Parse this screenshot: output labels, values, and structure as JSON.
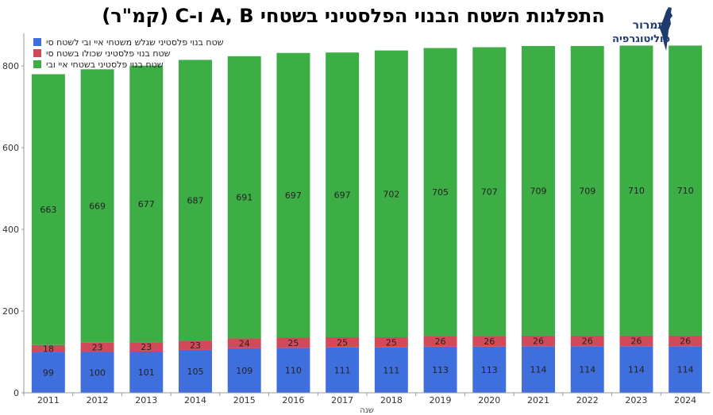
{
  "title": "התפלגות השטח הבנוי הפלסטיני בשטחי A, B ו-C (קמ\"ר)",
  "logo": {
    "line1": "תמרור",
    "line2": "פוליטוגרפיה"
  },
  "colors": {
    "blue": "#3f6fdc",
    "red": "#d14a5a",
    "green": "#3cae45"
  },
  "chart_data": {
    "type": "bar",
    "stacked": true,
    "categories": [
      "2011",
      "2012",
      "2013",
      "2014",
      "2015",
      "2016",
      "2017",
      "2018",
      "2019",
      "2020",
      "2021",
      "2022",
      "2023",
      "2024"
    ],
    "series": [
      {
        "name": "שטח בנוי פלסטיני שגלש משטחי איי ובי לשטח סי",
        "color": "#3f6fdc",
        "values": [
          99,
          100,
          101,
          105,
          109,
          110,
          111,
          111,
          113,
          113,
          114,
          114,
          114,
          114
        ]
      },
      {
        "name": "שטח בנוי פלסטיני שכולו בשטח סי",
        "color": "#d14a5a",
        "values": [
          18,
          23,
          23,
          23,
          24,
          25,
          25,
          25,
          26,
          26,
          26,
          26,
          26,
          26
        ]
      },
      {
        "name": "שטח בנוי פלסטיני בשטחי איי ובי",
        "color": "#3cae45",
        "values": [
          663,
          669,
          677,
          687,
          691,
          697,
          697,
          702,
          705,
          707,
          709,
          709,
          710,
          710
        ]
      }
    ],
    "xlabel": "שנה",
    "ylabel": "",
    "ylim": [
      0,
      880
    ],
    "yticks": [
      0,
      200,
      400,
      600,
      800
    ],
    "legend": "top-left"
  }
}
